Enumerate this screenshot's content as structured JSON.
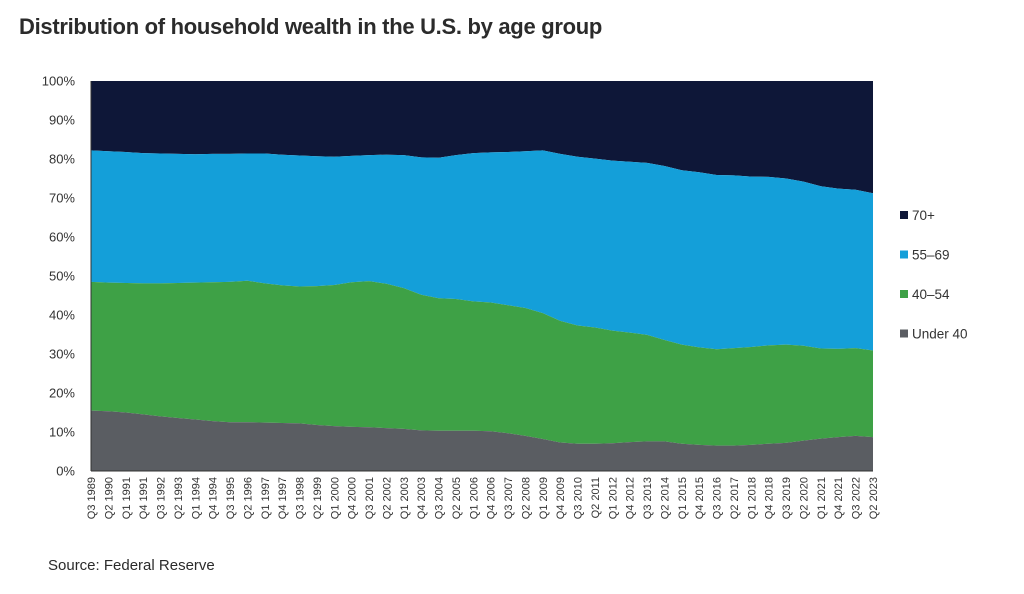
{
  "chart_data": {
    "type": "area",
    "stacked": true,
    "percent": true,
    "title": "Distribution of household wealth in the U.S. by age group",
    "source": "Source: Federal Reserve",
    "ylim": [
      0,
      100
    ],
    "y_ticks": [
      "0%",
      "10%",
      "20%",
      "30%",
      "40%",
      "50%",
      "60%",
      "70%",
      "80%",
      "90%",
      "100%"
    ],
    "x_ticks": [
      "Q3 1989",
      "Q2 1990",
      "Q1 1991",
      "Q4 1991",
      "Q3 1992",
      "Q2 1993",
      "Q1 1994",
      "Q4 1994",
      "Q3 1995",
      "Q2 1996",
      "Q1 1997",
      "Q4 1997",
      "Q3 1998",
      "Q2 1999",
      "Q1 2000",
      "Q4 2000",
      "Q3 2001",
      "Q2 2002",
      "Q1 2003",
      "Q4 2003",
      "Q3 2004",
      "Q2 2005",
      "Q1 2006",
      "Q4 2006",
      "Q3 2007",
      "Q2 2008",
      "Q1 2009",
      "Q4 2009",
      "Q3 2010",
      "Q2 2011",
      "Q1 2012",
      "Q4 2012",
      "Q3 2013",
      "Q2 2014",
      "Q1 2015",
      "Q4 2015",
      "Q3 2016",
      "Q2 2017",
      "Q1 2018",
      "Q4 2018",
      "Q3 2019",
      "Q2 2020",
      "Q1 2021",
      "Q4 2021",
      "Q3 2022",
      "Q2 2023"
    ],
    "x": [
      "Q3 1989",
      "Q2 1990",
      "Q1 1991",
      "Q4 1991",
      "Q3 1992",
      "Q2 1993",
      "Q1 1994",
      "Q4 1994",
      "Q3 1995",
      "Q2 1996",
      "Q1 1997",
      "Q4 1997",
      "Q3 1998",
      "Q2 1999",
      "Q1 2000",
      "Q4 2000",
      "Q3 2001",
      "Q2 2002",
      "Q1 2003",
      "Q4 2003",
      "Q3 2004",
      "Q2 2005",
      "Q1 2006",
      "Q4 2006",
      "Q3 2007",
      "Q2 2008",
      "Q1 2009",
      "Q4 2009",
      "Q3 2010",
      "Q2 2011",
      "Q1 2012",
      "Q4 2012",
      "Q3 2013",
      "Q2 2014",
      "Q1 2015",
      "Q4 2015",
      "Q3 2016",
      "Q2 2017",
      "Q1 2018",
      "Q4 2018",
      "Q3 2019",
      "Q2 2020",
      "Q1 2021",
      "Q4 2021",
      "Q3 2022",
      "Q2 2023"
    ],
    "series": [
      {
        "name": "Under 40",
        "color": "#5a5d62",
        "values": [
          15.5,
          15.3,
          15,
          14.5,
          14,
          13.6,
          13.2,
          12.8,
          12.5,
          12.5,
          12.4,
          12.3,
          12.2,
          11.8,
          11.5,
          11.3,
          11.2,
          11,
          10.8,
          10.4,
          10.3,
          10.3,
          10.3,
          10.2,
          9.7,
          9.0,
          8.2,
          7.3,
          7.0,
          7.0,
          7.1,
          7.4,
          7.6,
          7.6,
          7.0,
          6.7,
          6.5,
          6.5,
          6.7,
          7.0,
          7.2,
          7.8,
          8.3,
          8.7,
          9.0,
          8.7
        ]
      },
      {
        "name": "40–54",
        "color": "#3ea146",
        "values": [
          48.5,
          48.3,
          48.2,
          48.1,
          48.1,
          48.2,
          48.3,
          48.4,
          48.5,
          48.8,
          48.1,
          47.6,
          47.3,
          47.4,
          47.7,
          48.4,
          48.7,
          48.0,
          46.9,
          45.2,
          44.3,
          44.1,
          43.5,
          43.2,
          42.5,
          41.8,
          40.5,
          38.5,
          37.3,
          36.8,
          36.0,
          35.5,
          34.9,
          33.6,
          32.4,
          31.7,
          31.2,
          31.5,
          31.8,
          32.2,
          32.4,
          32.1,
          31.4,
          31.3,
          31.5,
          30.9
        ]
      },
      {
        "name": "55–69",
        "color": "#149fd9",
        "values": [
          82.2,
          82.0,
          81.8,
          81.5,
          81.4,
          81.3,
          81.2,
          81.3,
          81.3,
          81.4,
          81.4,
          81.1,
          80.9,
          80.7,
          80.6,
          80.8,
          81.0,
          81.1,
          81.0,
          80.4,
          80.3,
          81.0,
          81.5,
          81.7,
          81.8,
          82.0,
          82.2,
          81.3,
          80.6,
          80.1,
          79.6,
          79.3,
          79.0,
          78.2,
          77.1,
          76.6,
          75.9,
          75.8,
          75.5,
          75.4,
          75.0,
          74.2,
          73.0,
          72.4,
          72.1,
          71.2
        ]
      },
      {
        "name": "70+",
        "color": "#0e1738",
        "values": [
          100,
          100,
          100,
          100,
          100,
          100,
          100,
          100,
          100,
          100,
          100,
          100,
          100,
          100,
          100,
          100,
          100,
          100,
          100,
          100,
          100,
          100,
          100,
          100,
          100,
          100,
          100,
          100,
          100,
          100,
          100,
          100,
          100,
          100,
          100,
          100,
          100,
          100,
          100,
          100,
          100,
          100,
          100,
          100,
          100,
          100
        ]
      }
    ],
    "legend": [
      "70+",
      "55–69",
      "40–54",
      "Under 40"
    ],
    "legend_position": "right",
    "grid": false
  }
}
